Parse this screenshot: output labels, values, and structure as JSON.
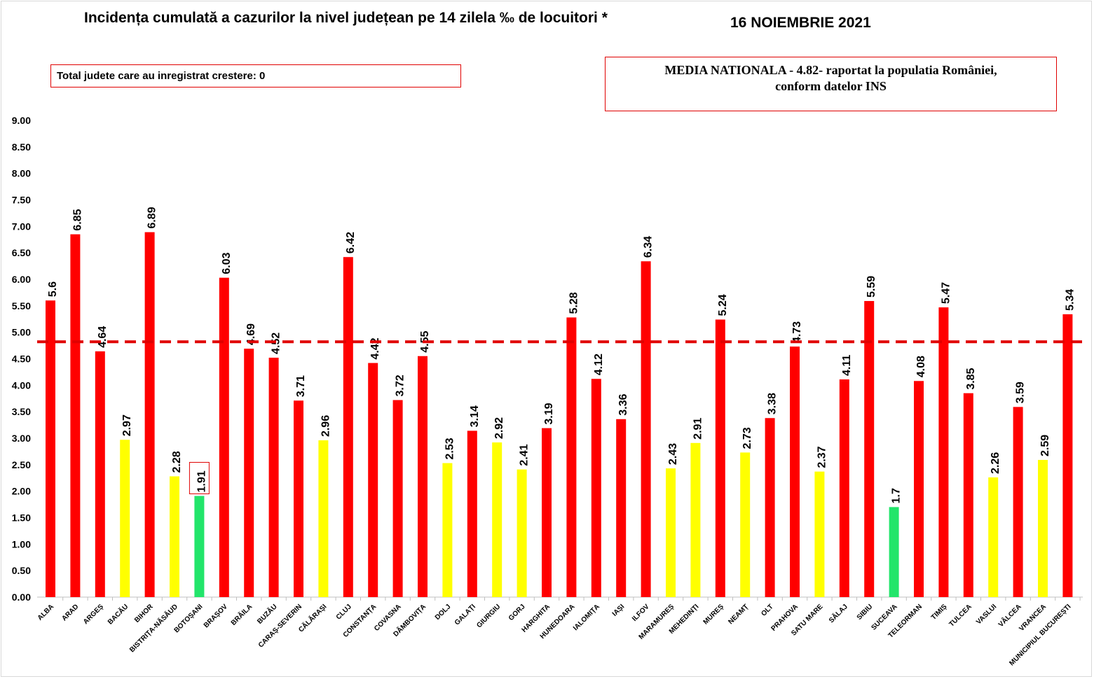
{
  "title": "Incidența cumulată a cazurilor la nivel județean pe 14 zilela ‰ de locuitori *",
  "date": "16 NOIEMBRIE 2021",
  "counties_increase_box": "Total judete care au inregistrat crestere: 0",
  "national_box": {
    "line1": "MEDIA NATIONALA   - 4.82-  raportat la populatia României,",
    "line2": "conform datelor INS"
  },
  "colors": {
    "red": "#ff0000",
    "yellow": "#ffff00",
    "green": "#22e56a",
    "reference_line": "#e00000"
  },
  "chart_data": {
    "type": "bar",
    "ylim": [
      0,
      9
    ],
    "ytick_step": 0.5,
    "yticks": [
      "0.00",
      "0.50",
      "1.00",
      "1.50",
      "2.00",
      "2.50",
      "3.00",
      "3.50",
      "4.00",
      "4.50",
      "5.00",
      "5.50",
      "6.00",
      "6.50",
      "7.00",
      "7.50",
      "8.00",
      "8.50",
      "9.00"
    ],
    "reference_value": 4.82,
    "reference_style": "dashed",
    "highlighted_category": "BOTOȘANI",
    "categories": [
      "ALBA",
      "ARAD",
      "ARGEȘ",
      "BACĂU",
      "BIHOR",
      "BISTRIȚA-NĂSĂUD",
      "BOTOȘANI",
      "BRAȘOV",
      "BRĂILA",
      "BUZĂU",
      "CARAȘ-SEVERIN",
      "CĂLĂRAȘI",
      "CLUJ",
      "CONSTANȚA",
      "COVASNA",
      "DÂMBOVIȚA",
      "DOLJ",
      "GALAȚI",
      "GIURGIU",
      "GORJ",
      "HARGHITA",
      "HUNEDOARA",
      "IALOMIȚA",
      "IAȘI",
      "ILFOV",
      "MARAMUREȘ",
      "MEHEDINȚI",
      "MUREȘ",
      "NEAMȚ",
      "OLT",
      "PRAHOVA",
      "SATU MARE",
      "SĂLAJ",
      "SIBIU",
      "SUCEAVA",
      "TELEORMAN",
      "TIMIȘ",
      "TULCEA",
      "VASLUI",
      "VÂLCEA",
      "VRANCEA",
      "MUNICIPIUL BUCUREȘTI"
    ],
    "values": [
      5.6,
      6.85,
      4.64,
      2.97,
      6.89,
      2.28,
      1.91,
      6.03,
      4.69,
      4.52,
      3.71,
      2.96,
      6.42,
      4.42,
      3.72,
      4.55,
      2.53,
      3.14,
      2.92,
      2.41,
      3.19,
      5.28,
      4.12,
      3.36,
      6.34,
      2.43,
      2.91,
      5.24,
      2.73,
      3.38,
      4.73,
      2.37,
      4.11,
      5.59,
      1.7,
      4.08,
      5.47,
      3.85,
      2.26,
      3.59,
      2.59,
      5.34
    ],
    "value_labels": [
      "5.6",
      "6.85",
      "4.64",
      "2.97",
      "6.89",
      "2.28",
      "1.91",
      "6.03",
      "4.69",
      "4.52",
      "3.71",
      "2.96",
      "6.42",
      "4.42",
      "3.72",
      "4.55",
      "2.53",
      "3.14",
      "2.92",
      "2.41",
      "3.19",
      "5.28",
      "4.12",
      "3.36",
      "6.34",
      "2.43",
      "2.91",
      "5.24",
      "2.73",
      "3.38",
      "4.73",
      "2.37",
      "4.11",
      "5.59",
      "1.7",
      "4.08",
      "5.47",
      "3.85",
      "2.26",
      "3.59",
      "2.59",
      "5.34"
    ],
    "bar_colors": [
      "red",
      "red",
      "red",
      "yellow",
      "red",
      "yellow",
      "green",
      "red",
      "red",
      "red",
      "red",
      "yellow",
      "red",
      "red",
      "red",
      "red",
      "yellow",
      "red",
      "yellow",
      "yellow",
      "red",
      "red",
      "red",
      "red",
      "red",
      "yellow",
      "yellow",
      "red",
      "yellow",
      "red",
      "red",
      "yellow",
      "red",
      "red",
      "green",
      "red",
      "red",
      "red",
      "yellow",
      "red",
      "yellow",
      "red"
    ]
  }
}
